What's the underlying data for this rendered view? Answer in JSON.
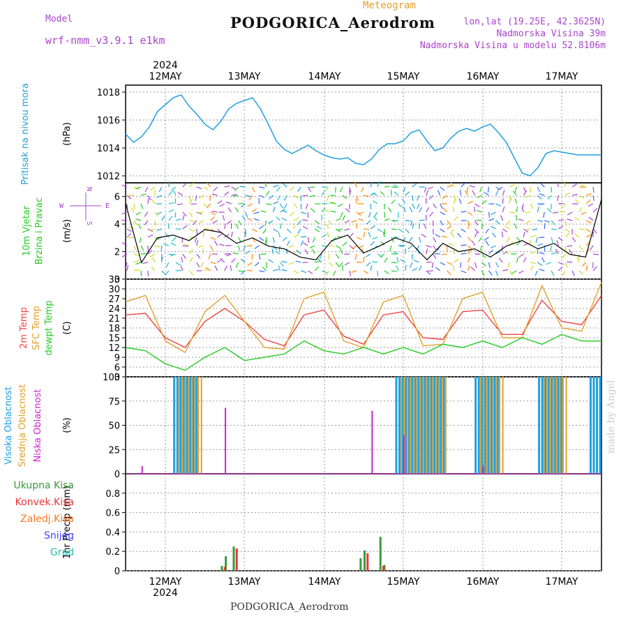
{
  "header": {
    "model_label": "Model",
    "model_name": "wrf-nmm_v3.9.1 e1km",
    "meteogram_label": "Meteogram",
    "station_title": "PODGORICA_Aerodrom",
    "lonlat": "lon,lat (19.25E, 42.3625N)",
    "elevation": "Nadmorska Visina 39m",
    "model_elevation": "Nadmorska Visina u modelu 52.8106m"
  },
  "footer": {
    "station": "PODGORICA_Aerodrom",
    "credit": "made by Angel"
  },
  "colors": {
    "pressure": "#1fa0e0",
    "temp2m": "#ee4444",
    "sfc_temp": "#e0a030",
    "dewpt": "#22cc22",
    "high_cloud": "#1fa0e0",
    "mid_cloud": "#e0a030",
    "low_cloud": "#cc22cc",
    "precip_total": "#3a9a3a",
    "precip_conv": "#ee3333",
    "precip_frozen": "#ff7722",
    "snow": "#4444ff",
    "graupel": "#22bbbb"
  },
  "chart_data": [
    {
      "type": "line",
      "name": "pressure",
      "ylabel_lines": [
        "Pritisak na nivou mora"
      ],
      "unit": "(hPa)",
      "ylim": [
        1011.5,
        1018.5
      ],
      "yticks": [
        1012,
        1014,
        1016,
        1018
      ],
      "xlim": [
        0,
        6
      ],
      "xtick_days": [
        "12MAY",
        "13MAY",
        "14MAY",
        "15MAY",
        "16MAY",
        "17MAY"
      ],
      "year": "2024",
      "grid": true,
      "series": [
        {
          "x": [
            0,
            0.1,
            0.2,
            0.3,
            0.4,
            0.5,
            0.6,
            0.7,
            0.8,
            0.9,
            1.0,
            1.1,
            1.2,
            1.3,
            1.4,
            1.5,
            1.6,
            1.7,
            1.8,
            1.9,
            2.0,
            2.1,
            2.2,
            2.3,
            2.4,
            2.5,
            2.6,
            2.7,
            2.8,
            2.9,
            3.0,
            3.1,
            3.2,
            3.3,
            3.4,
            3.5,
            3.6,
            3.7,
            3.8,
            3.9,
            4.0,
            4.1,
            4.2,
            4.3,
            4.4,
            4.5,
            4.6,
            4.7,
            4.8,
            4.9,
            5.0,
            5.1,
            5.2,
            5.3,
            5.4,
            5.5,
            5.6,
            5.7,
            5.8,
            5.9,
            6.0
          ],
          "values": [
            1015.0,
            1014.4,
            1014.8,
            1015.5,
            1016.6,
            1017.1,
            1017.6,
            1017.8,
            1017.0,
            1016.4,
            1015.7,
            1015.3,
            1015.9,
            1016.8,
            1017.2,
            1017.4,
            1017.6,
            1016.8,
            1015.7,
            1014.5,
            1013.9,
            1013.6,
            1013.9,
            1014.2,
            1013.8,
            1013.5,
            1013.3,
            1013.2,
            1013.3,
            1012.9,
            1012.8,
            1013.2,
            1013.9,
            1014.3,
            1014.3,
            1014.5,
            1015.1,
            1015.3,
            1014.5,
            1013.8,
            1014.0,
            1014.7,
            1015.2,
            1015.4,
            1015.2,
            1015.5,
            1015.7,
            1015.1,
            1014.4,
            1013.3,
            1012.2,
            1012.0,
            1012.6,
            1013.6,
            1013.8,
            1013.7,
            1013.6,
            1013.5,
            1013.5,
            1013.5,
            1013.5
          ]
        }
      ]
    },
    {
      "type": "line",
      "name": "wind",
      "ylabel_lines": [
        "10m Vjetar",
        "Brzina i Pravac"
      ],
      "unit": "(m/s)",
      "ylim": [
        0,
        7
      ],
      "yticks": [
        0,
        2,
        4,
        6
      ],
      "compass": {
        "n": "N",
        "s": "S",
        "e": "E",
        "w": "W"
      },
      "series": [
        {
          "name": "speed",
          "x": [
            0,
            0.2,
            0.4,
            0.6,
            0.8,
            1.0,
            1.2,
            1.4,
            1.6,
            1.8,
            2.0,
            2.2,
            2.4,
            2.6,
            2.8,
            3.0,
            3.2,
            3.4,
            3.6,
            3.8,
            4.0,
            4.2,
            4.4,
            4.6,
            4.8,
            5.0,
            5.2,
            5.4,
            5.6,
            5.8,
            6.0
          ],
          "values": [
            5.5,
            1.2,
            3.0,
            3.2,
            2.8,
            3.6,
            3.4,
            2.6,
            3.0,
            2.4,
            2.2,
            1.6,
            1.4,
            2.8,
            3.2,
            1.9,
            2.4,
            3.0,
            2.6,
            1.4,
            2.6,
            2.0,
            2.2,
            1.6,
            2.4,
            2.8,
            2.2,
            2.6,
            1.8,
            1.6,
            5.8
          ]
        }
      ]
    },
    {
      "type": "line",
      "name": "temperature",
      "ylabel_lines": [
        "2m Temp",
        "SFC Temp",
        "dewpt Temp"
      ],
      "unit": "(C)",
      "ylim": [
        3,
        33
      ],
      "yticks": [
        3,
        6,
        9,
        12,
        15,
        18,
        21,
        24,
        27,
        30,
        33
      ],
      "series": [
        {
          "name": "2m Temp",
          "x": [
            0,
            0.25,
            0.5,
            0.75,
            1.0,
            1.25,
            1.5,
            1.75,
            2.0,
            2.25,
            2.5,
            2.75,
            3.0,
            3.25,
            3.5,
            3.75,
            4.0,
            4.25,
            4.5,
            4.75,
            5.0,
            5.25,
            5.5,
            5.75,
            6.0
          ],
          "values": [
            22,
            22.5,
            15,
            12,
            20,
            24,
            20,
            14.5,
            12.5,
            22,
            23.5,
            15.5,
            13,
            22,
            23,
            15,
            14.5,
            23,
            23.5,
            16,
            16,
            26.5,
            20,
            19,
            28
          ]
        },
        {
          "name": "SFC Temp",
          "x": [
            0,
            0.25,
            0.5,
            0.75,
            1.0,
            1.25,
            1.5,
            1.75,
            2.0,
            2.25,
            2.5,
            2.75,
            3.0,
            3.25,
            3.5,
            3.75,
            4.0,
            4.25,
            4.5,
            4.75,
            5.0,
            5.25,
            5.5,
            5.75,
            6.0
          ],
          "values": [
            26,
            28,
            14,
            10.5,
            23,
            28,
            20,
            12,
            11.5,
            27,
            29,
            14,
            12,
            26,
            28,
            12.5,
            13,
            27,
            29,
            15,
            15,
            31,
            18,
            17,
            32
          ]
        },
        {
          "name": "dewpt Temp",
          "x": [
            0,
            0.25,
            0.5,
            0.75,
            1.0,
            1.25,
            1.5,
            1.75,
            2.0,
            2.25,
            2.5,
            2.75,
            3.0,
            3.25,
            3.5,
            3.75,
            4.0,
            4.25,
            4.5,
            4.75,
            5.0,
            5.25,
            5.5,
            5.75,
            6.0
          ],
          "values": [
            12,
            11,
            7,
            5,
            9,
            12,
            8,
            9,
            10,
            14,
            11,
            10,
            12,
            10,
            12,
            10,
            13,
            12,
            14,
            12,
            15,
            13,
            16,
            14,
            14
          ]
        }
      ]
    },
    {
      "type": "bar",
      "name": "cloud_cover",
      "ylabel_lines": [
        "Visoka Oblacnost",
        "Srednja Oblacnost",
        "Niska Oblacnost"
      ],
      "unit": "(%)",
      "ylim": [
        0,
        100
      ],
      "yticks": [
        0,
        25,
        50,
        75,
        100
      ],
      "series": [
        {
          "name": "Visoka Oblacnost",
          "segments": [
            [
              0.6,
              0.92,
              100
            ],
            [
              3.4,
              4.0,
              100
            ],
            [
              4.4,
              4.7,
              100
            ],
            [
              5.2,
              5.5,
              100
            ],
            [
              5.85,
              6.0,
              100
            ]
          ]
        },
        {
          "name": "Srednja Oblacnost",
          "segments": [
            [
              0.65,
              0.95,
              100
            ],
            [
              3.45,
              4.05,
              100
            ],
            [
              4.45,
              4.75,
              100
            ],
            [
              5.25,
              5.55,
              100
            ]
          ]
        },
        {
          "name": "Niska Oblacnost",
          "points": [
            [
              0.2,
              8
            ],
            [
              1.25,
              68
            ],
            [
              3.1,
              65
            ],
            [
              3.5,
              40
            ],
            [
              4.5,
              8
            ]
          ]
        }
      ]
    },
    {
      "type": "bar",
      "name": "precipitation",
      "ylabel_lines": [
        "Ukupna Kisa",
        "Konvek.Kisa",
        "Zaledj.Kisa",
        "Snijeg",
        "Grad"
      ],
      "unit": "1hr Precip (mm)",
      "ylim": [
        0,
        1.0
      ],
      "yticks": [
        0,
        0.2,
        0.4,
        0.6,
        0.8
      ],
      "series": [
        {
          "name": "Ukupna Kisa",
          "points": [
            [
              1.2,
              0.05
            ],
            [
              1.25,
              0.15
            ],
            [
              1.35,
              0.25
            ],
            [
              2.95,
              0.13
            ],
            [
              3.0,
              0.21
            ],
            [
              3.2,
              0.35
            ],
            [
              3.25,
              0.06
            ]
          ]
        },
        {
          "name": "Konvek.Kisa",
          "points": [
            [
              1.22,
              0.04
            ],
            [
              1.37,
              0.23
            ],
            [
              3.02,
              0.18
            ],
            [
              3.22,
              0.05
            ]
          ]
        }
      ]
    }
  ]
}
